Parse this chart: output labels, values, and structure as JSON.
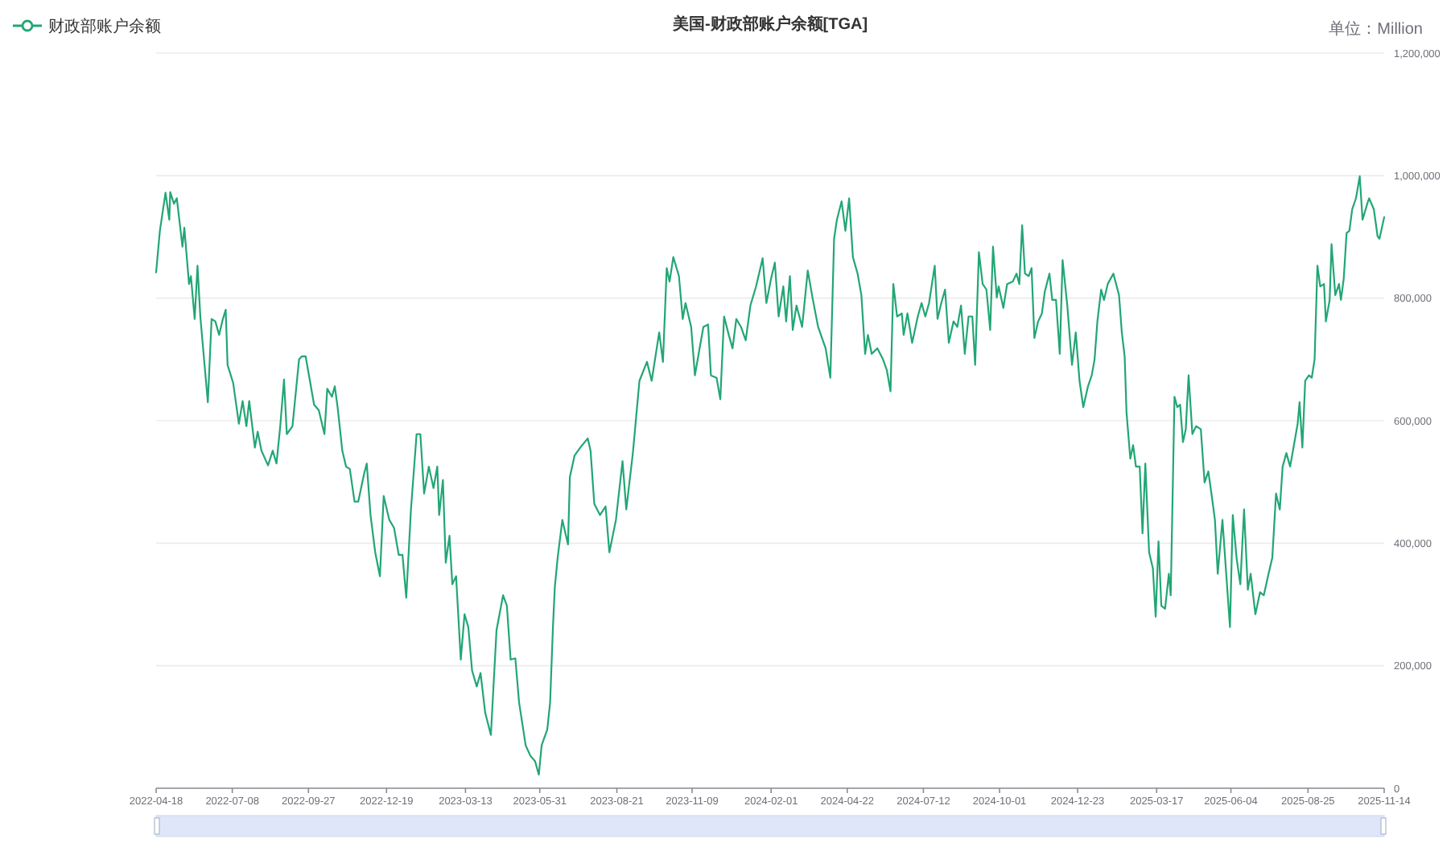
{
  "chart_data": {
    "type": "line",
    "title": "美国-财政部账户余额[TGA]",
    "ylabel": "单位：Million",
    "legend": "top left",
    "grid": "y",
    "xlim": [
      "2022-04-18",
      "2025-11-14"
    ],
    "xticks": [
      "2022-04-18",
      "2022-07-08",
      "2022-09-27",
      "2022-12-19",
      "2023-03-13",
      "2023-05-31",
      "2023-08-21",
      "2023-11-09",
      "2024-02-01",
      "2024-04-22",
      "2024-07-12",
      "2024-10-01",
      "2024-12-23",
      "2025-03-17",
      "2025-06-04",
      "2025-08-25",
      "2025-11-14"
    ],
    "ylim": [
      0,
      1200000
    ],
    "yticks": [
      0,
      {
        "value": 200000,
        "label": "200,000"
      },
      {
        "value": 400000,
        "label": "400,000"
      },
      {
        "value": 600000,
        "label": "600,000"
      },
      {
        "value": 800000,
        "label": "800,000"
      },
      {
        "value": 1000000,
        "label": "1,000,000"
      },
      {
        "value": 1200000,
        "label": "1,200,000"
      }
    ],
    "x": [
      "2022-04-18",
      "2022-04-22",
      "2022-04-28",
      "2022-05-02",
      "2022-05-03",
      "2022-05-07",
      "2022-05-10",
      "2022-05-16",
      "2022-05-18",
      "2022-05-23",
      "2022-05-25",
      "2022-05-29",
      "2022-06-01",
      "2022-06-04",
      "2022-06-12",
      "2022-06-16",
      "2022-06-20",
      "2022-06-24",
      "2022-06-28",
      "2022-07-01",
      "2022-07-03",
      "2022-07-09",
      "2022-07-15",
      "2022-07-19",
      "2022-07-23",
      "2022-07-26",
      "2022-08-01",
      "2022-08-04",
      "2022-08-08",
      "2022-08-15",
      "2022-08-20",
      "2022-08-24",
      "2022-08-28",
      "2022-09-01",
      "2022-09-04",
      "2022-09-10",
      "2022-09-17",
      "2022-09-20",
      "2022-09-24",
      "2022-10-03",
      "2022-10-08",
      "2022-10-14",
      "2022-10-17",
      "2022-10-22",
      "2022-10-25",
      "2022-10-28",
      "2022-11-02",
      "2022-11-06",
      "2022-11-10",
      "2022-11-15",
      "2022-11-19",
      "2022-11-25",
      "2022-11-28",
      "2022-12-02",
      "2022-12-07",
      "2022-12-12",
      "2022-12-16",
      "2022-12-22",
      "2022-12-27",
      "2023-01-01",
      "2023-01-05",
      "2023-01-09",
      "2023-01-14",
      "2023-01-20",
      "2023-01-24",
      "2023-01-28",
      "2023-02-02",
      "2023-02-07",
      "2023-02-11",
      "2023-02-13",
      "2023-02-17",
      "2023-02-20",
      "2023-02-24",
      "2023-02-27",
      "2023-03-03",
      "2023-03-08",
      "2023-03-12",
      "2023-03-16",
      "2023-03-20",
      "2023-03-25",
      "2023-03-29",
      "2023-04-03",
      "2023-04-09",
      "2023-04-15",
      "2023-04-22",
      "2023-04-26",
      "2023-04-30",
      "2023-05-05",
      "2023-05-09",
      "2023-05-16",
      "2023-05-21",
      "2023-05-26",
      "2023-05-30",
      "2023-06-02",
      "2023-06-08",
      "2023-06-11",
      "2023-06-14",
      "2023-06-16",
      "2023-06-19",
      "2023-06-24",
      "2023-06-30",
      "2023-07-02",
      "2023-07-07",
      "2023-07-13",
      "2023-07-21",
      "2023-07-24",
      "2023-07-28",
      "2023-08-03",
      "2023-08-09",
      "2023-08-13",
      "2023-08-20",
      "2023-08-27",
      "2023-08-31",
      "2023-09-07",
      "2023-09-14",
      "2023-09-22",
      "2023-09-27",
      "2023-10-05",
      "2023-10-09",
      "2023-10-13",
      "2023-10-16",
      "2023-10-20",
      "2023-10-26",
      "2023-10-30",
      "2023-11-02",
      "2023-11-08",
      "2023-11-12",
      "2023-11-18",
      "2023-11-21",
      "2023-11-26",
      "2023-11-29",
      "2023-12-05",
      "2023-12-09",
      "2023-12-13",
      "2023-12-18",
      "2023-12-22",
      "2023-12-26",
      "2023-12-31",
      "2024-01-05",
      "2024-01-10",
      "2024-01-16",
      "2024-01-23",
      "2024-01-27",
      "2024-02-01",
      "2024-02-05",
      "2024-02-09",
      "2024-02-14",
      "2024-02-17",
      "2024-02-21",
      "2024-02-24",
      "2024-02-28",
      "2024-03-05",
      "2024-03-11",
      "2024-03-16",
      "2024-03-22",
      "2024-03-30",
      "2024-04-04",
      "2024-04-08",
      "2024-04-11",
      "2024-04-16",
      "2024-04-20",
      "2024-04-24",
      "2024-04-28",
      "2024-05-03",
      "2024-05-07",
      "2024-05-11",
      "2024-05-14",
      "2024-05-18",
      "2024-05-24",
      "2024-05-30",
      "2024-06-03",
      "2024-06-07",
      "2024-06-10",
      "2024-06-14",
      "2024-06-19",
      "2024-06-21",
      "2024-06-25",
      "2024-06-30",
      "2024-07-06",
      "2024-07-10",
      "2024-07-14",
      "2024-07-18",
      "2024-07-24",
      "2024-07-27",
      "2024-07-31",
      "2024-08-04",
      "2024-08-08",
      "2024-08-13",
      "2024-08-17",
      "2024-08-21",
      "2024-08-25",
      "2024-08-29",
      "2024-09-02",
      "2024-09-05",
      "2024-09-09",
      "2024-09-13",
      "2024-09-17",
      "2024-09-21",
      "2024-09-24",
      "2024-09-28",
      "2024-09-30",
      "2024-10-05",
      "2024-10-09",
      "2024-10-15",
      "2024-10-19",
      "2024-10-22",
      "2024-10-25",
      "2024-10-28",
      "2024-11-01",
      "2024-11-04",
      "2024-11-07",
      "2024-11-11",
      "2024-11-15",
      "2024-11-18",
      "2024-11-23",
      "2024-11-26",
      "2024-11-30",
      "2024-12-04",
      "2024-12-07",
      "2024-12-12",
      "2024-12-17",
      "2024-12-21",
      "2024-12-25",
      "2024-12-29",
      "2025-01-03",
      "2025-01-07",
      "2025-01-10",
      "2025-01-13",
      "2025-01-17",
      "2025-01-20",
      "2025-01-24",
      "2025-01-30",
      "2025-02-05",
      "2025-02-08",
      "2025-02-11",
      "2025-02-13",
      "2025-02-17",
      "2025-02-20",
      "2025-02-23",
      "2025-02-27",
      "2025-03-02",
      "2025-03-05",
      "2025-03-09",
      "2025-03-13",
      "2025-03-16",
      "2025-03-19",
      "2025-03-22",
      "2025-03-26",
      "2025-03-30",
      "2025-04-01",
      "2025-04-05",
      "2025-04-08",
      "2025-04-11",
      "2025-04-14",
      "2025-04-17",
      "2025-04-20",
      "2025-04-24",
      "2025-04-28",
      "2025-05-03",
      "2025-05-07",
      "2025-05-11",
      "2025-05-15",
      "2025-05-18",
      "2025-05-21",
      "2025-05-26",
      "2025-05-30",
      "2025-06-03",
      "2025-06-06",
      "2025-06-10",
      "2025-06-14",
      "2025-06-18",
      "2025-06-22",
      "2025-06-25",
      "2025-06-30",
      "2025-07-05",
      "2025-07-09",
      "2025-07-14",
      "2025-07-18",
      "2025-07-22",
      "2025-07-26",
      "2025-07-29",
      "2025-08-02",
      "2025-08-06",
      "2025-08-10",
      "2025-08-14",
      "2025-08-16",
      "2025-08-19",
      "2025-08-22",
      "2025-08-26",
      "2025-08-29",
      "2025-09-01",
      "2025-09-04",
      "2025-09-07",
      "2025-09-11",
      "2025-09-13",
      "2025-09-17",
      "2025-09-19",
      "2025-09-23",
      "2025-09-27",
      "2025-09-29",
      "2025-10-02",
      "2025-10-05",
      "2025-10-08",
      "2025-10-11",
      "2025-10-15",
      "2025-10-19",
      "2025-10-22",
      "2025-10-27",
      "2025-10-29",
      "2025-11-03",
      "2025-11-07",
      "2025-11-09",
      "2025-11-14"
    ],
    "series": [
      {
        "name": "财政部账户余额",
        "color": "#22a675",
        "values": [
          842000,
          910000,
          972000,
          928000,
          973000,
          954000,
          963000,
          884000,
          915000,
          823000,
          836000,
          766000,
          853000,
          770000,
          630000,
          766000,
          762000,
          740000,
          766000,
          781000,
          691000,
          661000,
          595000,
          632000,
          591000,
          632000,
          556000,
          582000,
          551000,
          527000,
          551000,
          530000,
          591000,
          667000,
          578000,
          591000,
          700000,
          705000,
          705000,
          626000,
          617000,
          578000,
          652000,
          639000,
          656000,
          622000,
          551000,
          525000,
          521000,
          468000,
          468000,
          512000,
          530000,
          446000,
          385000,
          346000,
          477000,
          438000,
          425000,
          381000,
          381000,
          311000,
          455000,
          578000,
          578000,
          481000,
          525000,
          490000,
          525000,
          446000,
          503000,
          368000,
          412000,
          333000,
          346000,
          210000,
          284000,
          263000,
          192000,
          166000,
          188000,
          123000,
          87000,
          258000,
          315000,
          298000,
          210000,
          212000,
          140000,
          70000,
          53000,
          44000,
          22000,
          70000,
          96000,
          140000,
          263000,
          328000,
          376000,
          438000,
          398000,
          508000,
          543000,
          556000,
          571000,
          551000,
          464000,
          446000,
          460000,
          385000,
          438000,
          534000,
          455000,
          547000,
          665000,
          696000,
          665000,
          744000,
          696000,
          849000,
          827000,
          867000,
          836000,
          766000,
          792000,
          753000,
          674000,
          727000,
          753000,
          757000,
          674000,
          670000,
          635000,
          770000,
          740000,
          718000,
          766000,
          753000,
          731000,
          788000,
          819000,
          865000,
          792000,
          832000,
          858000,
          770000,
          819000,
          762000,
          836000,
          748000,
          788000,
          753000,
          845000,
          801000,
          753000,
          718000,
          670000,
          897000,
          928000,
          958000,
          910000,
          963000,
          867000,
          840000,
          805000,
          709000,
          740000,
          709000,
          718000,
          700000,
          683000,
          648000,
          823000,
          770000,
          775000,
          740000,
          775000,
          727000,
          770000,
          792000,
          770000,
          792000,
          853000,
          766000,
          792000,
          814000,
          727000,
          762000,
          753000,
          788000,
          709000,
          770000,
          770000,
          691000,
          875000,
          823000,
          814000,
          748000,
          884000,
          801000,
          819000,
          784000,
          823000,
          827000,
          840000,
          823000,
          919000,
          840000,
          836000,
          849000,
          735000,
          762000,
          775000,
          810000,
          840000,
          797000,
          797000,
          709000,
          862000,
          788000,
          691000,
          744000,
          665000,
          622000,
          656000,
          674000,
          700000,
          762000,
          814000,
          797000,
          823000,
          840000,
          805000,
          744000,
          705000,
          613000,
          538000,
          560000,
          525000,
          525000,
          416000,
          530000,
          385000,
          359000,
          280000,
          403000,
          298000,
          293000,
          350000,
          315000,
          639000,
          622000,
          626000,
          565000,
          586000,
          674000,
          578000,
          591000,
          586000,
          499000,
          517000,
          473000,
          438000,
          350000,
          438000,
          350000,
          263000,
          446000,
          376000,
          333000,
          455000,
          324000,
          350000,
          284000,
          320000,
          315000,
          350000,
          376000,
          481000,
          455000,
          525000,
          547000,
          525000,
          560000,
          595000,
          630000,
          556000,
          665000,
          674000,
          670000,
          700000,
          853000,
          819000,
          823000,
          762000,
          797000,
          888000,
          805000,
          823000,
          797000,
          832000,
          906000,
          910000,
          945000,
          963000,
          999000,
          928000,
          954000,
          963000,
          945000,
          901000,
          897000,
          932000
        ]
      }
    ]
  }
}
